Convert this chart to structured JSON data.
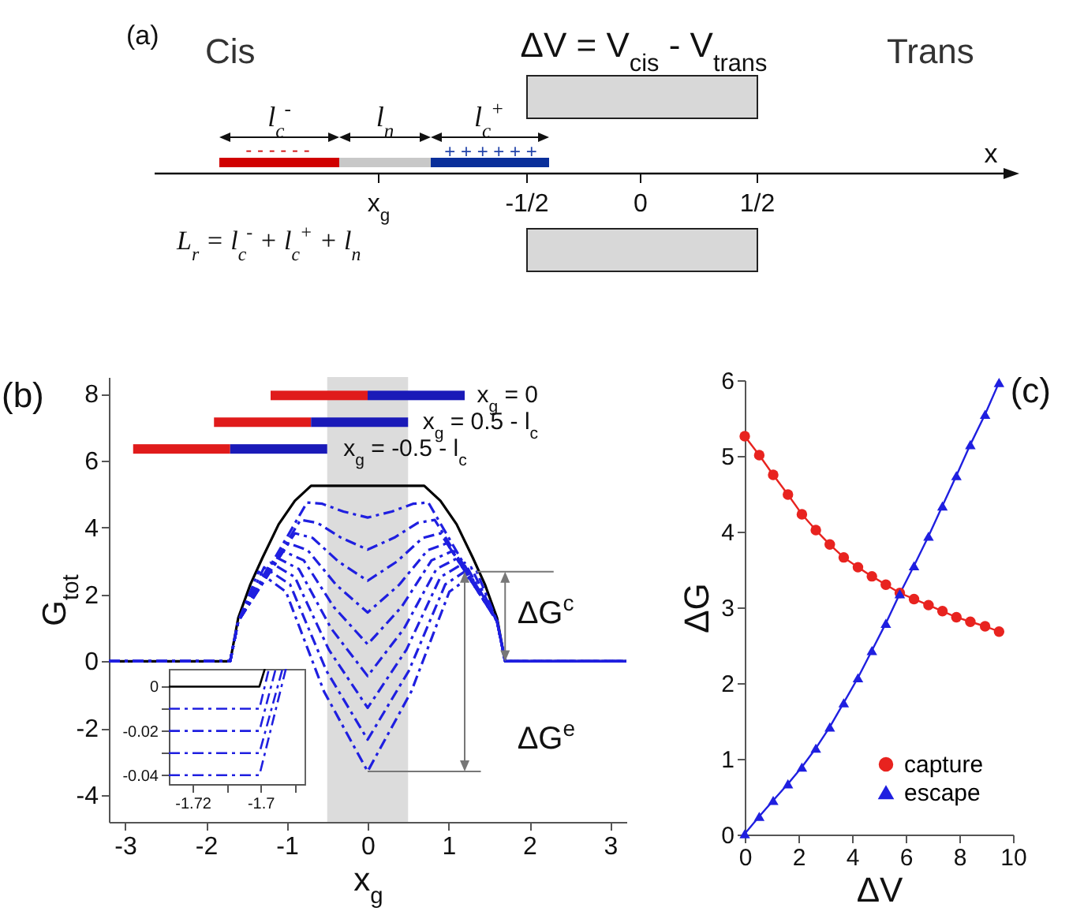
{
  "chart_data": [
    {
      "type": "other",
      "annotations": [
        "(a)",
        "Cis",
        "ΔV = V$_{cis}$ - V$_{trans}$",
        "Trans",
        "l$_{c}$$^{-}$",
        "l$_{n}$",
        "l$_{c}$$^{+}$",
        "- - - - - -",
        "+ + + + + +",
        "x",
        "x$_{g}$",
        "-1/2",
        "0",
        "1/2",
        "L$_{r}$ = l$_{c}$$^{-}$ + l$_{c}$$^{+}$ + l$_{n}$"
      ]
    },
    {
      "type": "line",
      "title": "(b)",
      "xlabel": "x$_{g}$",
      "ylabel": "G$_{tot}$",
      "xlim": [
        -3.2,
        3.2
      ],
      "ylim": [
        -4.8,
        8.5
      ],
      "xticks": [
        -3,
        -2,
        -1,
        0,
        1,
        2,
        3
      ],
      "yticks": [
        -4,
        -2,
        0,
        2,
        4,
        6,
        8
      ],
      "bands": [
        {
          "axis": "x",
          "from": -0.5,
          "to": 0.5,
          "color": "#dcdcdc"
        }
      ],
      "annotations": [
        {
          "text": "ΔG$^{c}$",
          "x": 1.35,
          "y": 2.68
        },
        {
          "text": "ΔG$^{e}$",
          "x": 0,
          "y": -3.29
        },
        "x$_{g}$ = 0",
        "x$_{g}$ = 0.5 - l$_{c}$",
        "x$_{g}$ = -0.5 - l$_{c}$"
      ],
      "series": [
        {
          "color": "#000000",
          "line_style": "solid",
          "x": [
            -3.2,
            -1.7,
            -1.6,
            -1.45,
            -1.3,
            -1.1,
            -0.9,
            -0.7,
            0.7,
            0.9,
            1.1,
            1.3,
            1.45,
            1.6,
            1.7,
            3.2
          ],
          "values": [
            0,
            0,
            1.3,
            2.3,
            3.1,
            4.1,
            4.8,
            5.25,
            5.25,
            4.8,
            4.1,
            3.1,
            2.3,
            1.3,
            0,
            0
          ]
        },
        {
          "color": "#1f1fe0",
          "line_style": "dashed",
          "x": [
            -3.2,
            -1.7,
            -1.6,
            -0.75,
            -0.56,
            -0.3,
            0,
            0.3,
            0.56,
            0.75,
            1.6,
            1.7,
            3.2
          ],
          "values": [
            0,
            0,
            1.2,
            4.75,
            4.71,
            4.48,
            4.3,
            4.48,
            4.71,
            4.75,
            1.2,
            0,
            0
          ]
        },
        {
          "color": "#1f1fe0",
          "line_style": "dashed",
          "x": [
            -3.2,
            -1.7,
            -1.6,
            -0.83,
            -0.62,
            -0.33,
            0,
            0.33,
            0.62,
            0.83,
            1.6,
            1.7,
            3.2
          ],
          "values": [
            0,
            0,
            1.2,
            4.23,
            4.14,
            3.7,
            3.34,
            3.7,
            4.14,
            4.23,
            1.2,
            0,
            0
          ]
        },
        {
          "color": "#1f1fe0",
          "line_style": "dashed",
          "x": [
            -3.2,
            -1.7,
            -1.6,
            -0.9,
            -0.68,
            -0.36,
            0,
            0.36,
            0.68,
            0.9,
            1.6,
            1.7,
            3.2
          ],
          "values": [
            0,
            0,
            1.2,
            3.83,
            3.69,
            2.98,
            2.41,
            2.98,
            3.69,
            3.83,
            1.2,
            0,
            0
          ]
        },
        {
          "color": "#1f1fe0",
          "line_style": "dashed",
          "x": [
            -3.2,
            -1.7,
            -1.6,
            -0.98,
            -0.74,
            -0.39,
            0,
            0.39,
            0.74,
            0.98,
            1.6,
            1.7,
            3.2
          ],
          "values": [
            0,
            0,
            1.2,
            3.53,
            3.32,
            2.29,
            1.46,
            2.29,
            3.32,
            3.53,
            1.2,
            0,
            0
          ]
        },
        {
          "color": "#1f1fe0",
          "line_style": "dashed",
          "x": [
            -3.2,
            -1.7,
            -1.6,
            -1.05,
            -0.79,
            -0.42,
            0,
            0.42,
            0.79,
            1.05,
            1.6,
            1.7,
            3.2
          ],
          "values": [
            0,
            0,
            1.2,
            3.3,
            3.02,
            1.63,
            0.51,
            1.63,
            3.02,
            3.3,
            1.2,
            0,
            0
          ]
        },
        {
          "color": "#1f1fe0",
          "line_style": "dashed",
          "x": [
            -3.2,
            -1.7,
            -1.6,
            -1.13,
            -0.85,
            -0.45,
            0,
            0.45,
            0.85,
            1.13,
            1.6,
            1.7,
            3.2
          ],
          "values": [
            0,
            0,
            1.2,
            3.11,
            2.76,
            0.98,
            -0.44,
            0.98,
            2.76,
            3.11,
            1.2,
            0,
            0
          ]
        },
        {
          "color": "#1f1fe0",
          "line_style": "dashed",
          "x": [
            -3.2,
            -1.7,
            -1.6,
            -1.2,
            -0.9,
            -0.48,
            0,
            0.48,
            0.9,
            1.2,
            1.6,
            1.7,
            3.2
          ],
          "values": [
            0,
            0,
            1.2,
            2.95,
            2.52,
            0.35,
            -1.39,
            0.35,
            2.52,
            2.95,
            1.2,
            0,
            0
          ]
        },
        {
          "color": "#1f1fe0",
          "line_style": "dashed",
          "x": [
            -3.2,
            -1.7,
            -1.6,
            -1.28,
            -0.96,
            -0.51,
            0,
            0.51,
            0.96,
            1.28,
            1.6,
            1.7,
            3.2
          ],
          "values": [
            0,
            0,
            1.2,
            2.81,
            2.3,
            -0.28,
            -2.34,
            -0.28,
            2.3,
            2.81,
            1.2,
            0,
            0
          ]
        },
        {
          "color": "#1f1fe0",
          "line_style": "dashed",
          "x": [
            -3.2,
            -1.7,
            -1.6,
            -1.35,
            -1.01,
            -0.54,
            0,
            0.54,
            1.01,
            1.35,
            1.6,
            1.7,
            3.2
          ],
          "values": [
            0,
            0,
            1.2,
            2.68,
            2.08,
            -0.9,
            -3.29,
            -0.9,
            2.08,
            2.68,
            1.2,
            0,
            0
          ]
        }
      ]
    },
    {
      "type": "line",
      "xlim": [
        -1.727,
        -1.687
      ],
      "ylim": [
        -0.044,
        0.008
      ],
      "xticks": [
        -1.72,
        {
          "value": -1.71,
          "label": null
        },
        -1.7,
        {
          "value": -1.69,
          "label": null
        }
      ],
      "yticks": [
        0,
        {
          "value": -0.01,
          "label": null
        },
        -0.02,
        {
          "value": -0.03,
          "label": null
        },
        -0.04
      ],
      "series": [
        {
          "color": "#000000",
          "line_style": "solid",
          "x": [
            -1.727,
            -1.7003,
            -1.6987
          ],
          "values": [
            0,
            0,
            0.008
          ]
        },
        {
          "color": "#1f1fe0",
          "line_style": "dashed",
          "x": [
            -1.727,
            -1.7003,
            -1.6975
          ],
          "values": [
            -0.01,
            -0.01,
            0.008
          ]
        },
        {
          "color": "#1f1fe0",
          "line_style": "dashed",
          "x": [
            -1.727,
            -1.7003,
            -1.6955
          ],
          "values": [
            -0.02,
            -0.02,
            0.008
          ]
        },
        {
          "color": "#1f1fe0",
          "line_style": "dashed",
          "x": [
            -1.727,
            -1.7003,
            -1.6935
          ],
          "values": [
            -0.03,
            -0.03,
            0.008
          ]
        },
        {
          "color": "#1f1fe0",
          "line_style": "dashed",
          "x": [
            -1.727,
            -1.7003,
            -1.6925
          ],
          "values": [
            -0.04,
            -0.04,
            0.008
          ]
        }
      ]
    },
    {
      "type": "line",
      "title": "(c)",
      "xlabel": "ΔV",
      "ylabel": "ΔG",
      "xlim": [
        0,
        10
      ],
      "ylim": [
        0,
        6
      ],
      "xticks": [
        0,
        2,
        4,
        6,
        8,
        10
      ],
      "yticks": [
        0,
        1,
        2,
        3,
        4,
        5,
        6
      ],
      "legend": "bottom right",
      "x": [
        0,
        0.54,
        1.06,
        1.61,
        2.13,
        2.65,
        3.17,
        3.69,
        4.22,
        4.74,
        5.26,
        5.78,
        6.31,
        6.85,
        7.37,
        7.89,
        8.41,
        8.96,
        9.48
      ],
      "series": [
        {
          "name": "capture",
          "color": "#e8231f",
          "marker": "circle",
          "line_style": "solid",
          "values": [
            5.26,
            5.01,
            4.75,
            4.49,
            4.23,
            4.02,
            3.83,
            3.66,
            3.53,
            3.41,
            3.3,
            3.19,
            3.11,
            3.03,
            2.95,
            2.87,
            2.81,
            2.75,
            2.68
          ]
        },
        {
          "name": "escape",
          "color": "#1f1fe0",
          "marker": "triangle",
          "line_style": "solid",
          "values": [
            0.01,
            0.24,
            0.45,
            0.67,
            0.89,
            1.14,
            1.42,
            1.74,
            2.07,
            2.43,
            2.79,
            3.18,
            3.55,
            3.94,
            4.34,
            4.74,
            5.15,
            5.55,
            5.97
          ]
        }
      ]
    }
  ]
}
